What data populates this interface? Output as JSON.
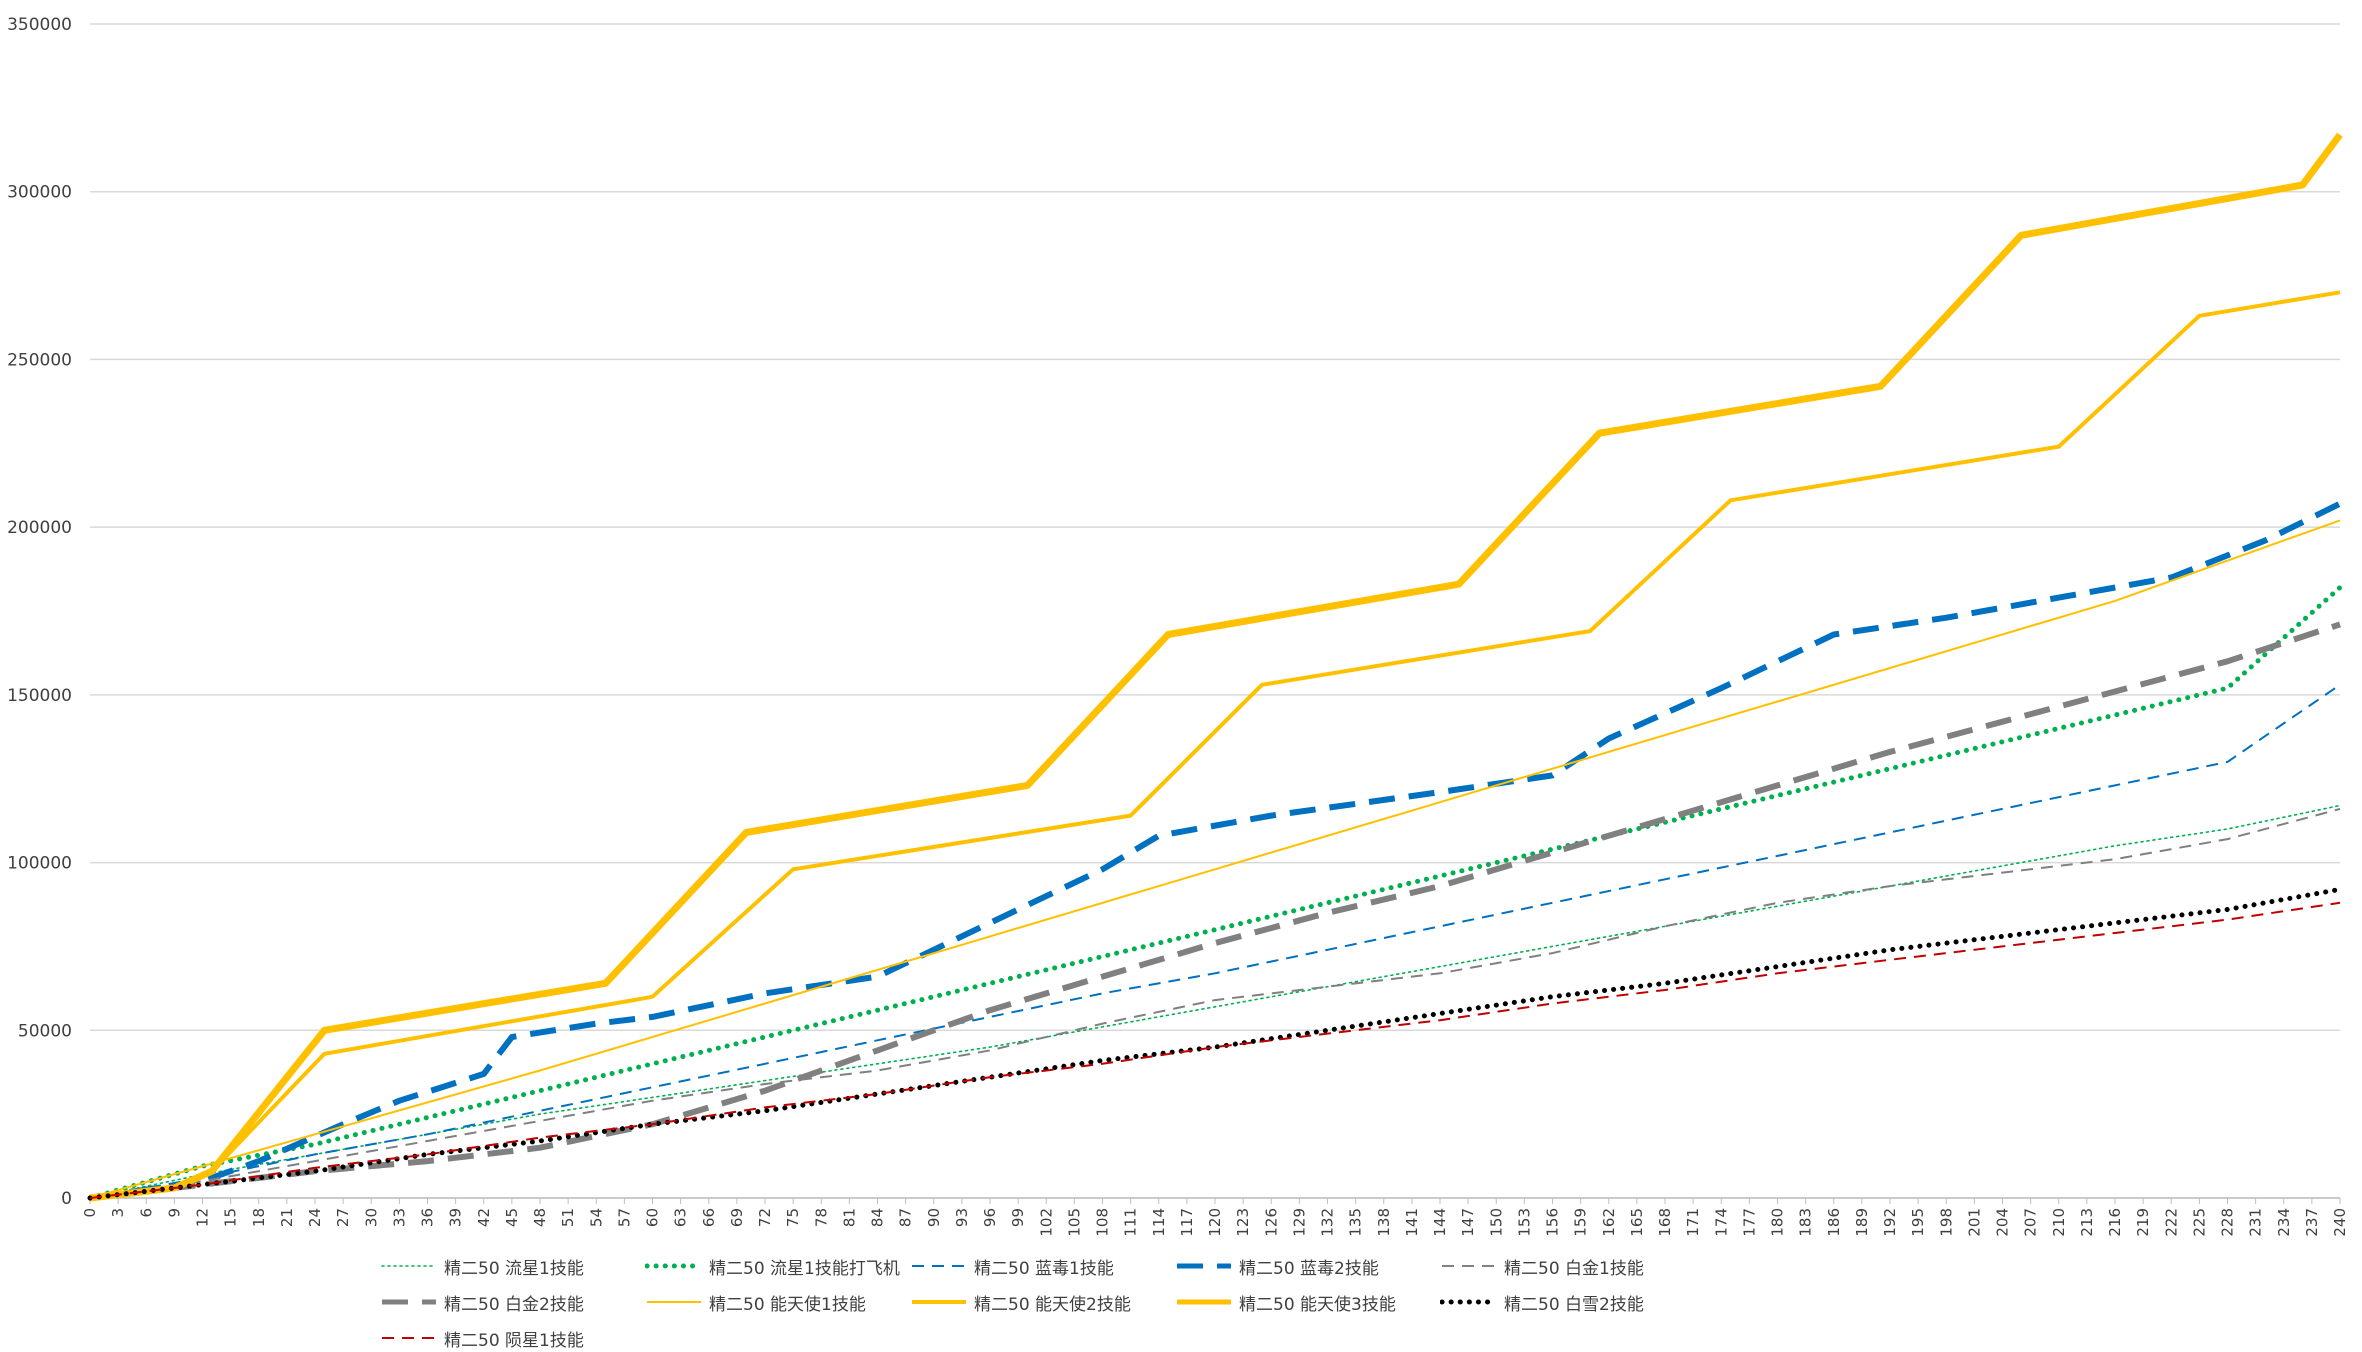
{
  "chart_data": {
    "type": "line",
    "title": "",
    "xlabel": "",
    "ylabel": "",
    "ylim": [
      0,
      350000
    ],
    "yticks": [
      0,
      50000,
      100000,
      150000,
      200000,
      250000,
      300000,
      350000
    ],
    "xlim": [
      0,
      240
    ],
    "xtick_step": 3,
    "xtick_last": 240,
    "grid": "horizontal",
    "legend_position": "bottom",
    "series": [
      {
        "name": "精二50 流星1技能",
        "color": "#00b050",
        "style": "dot-thin",
        "points": [
          [
            0,
            0
          ],
          [
            12,
            7000
          ],
          [
            24,
            13000
          ],
          [
            36,
            19000
          ],
          [
            48,
            25000
          ],
          [
            60,
            30000
          ],
          [
            72,
            35000
          ],
          [
            84,
            40000
          ],
          [
            96,
            45000
          ],
          [
            108,
            51000
          ],
          [
            120,
            57000
          ],
          [
            132,
            63000
          ],
          [
            144,
            69000
          ],
          [
            156,
            75000
          ],
          [
            168,
            81000
          ],
          [
            180,
            87000
          ],
          [
            192,
            93000
          ],
          [
            204,
            99000
          ],
          [
            216,
            105000
          ],
          [
            228,
            110000
          ],
          [
            240,
            117000
          ]
        ]
      },
      {
        "name": "精二50 流星1技能打飞机",
        "color": "#00b050",
        "style": "dot-thick",
        "points": [
          [
            0,
            0
          ],
          [
            12,
            9500
          ],
          [
            24,
            16000
          ],
          [
            36,
            24000
          ],
          [
            48,
            32000
          ],
          [
            60,
            40000
          ],
          [
            72,
            48000
          ],
          [
            84,
            56000
          ],
          [
            96,
            64000
          ],
          [
            108,
            72000
          ],
          [
            120,
            80000
          ],
          [
            132,
            88000
          ],
          [
            144,
            96000
          ],
          [
            156,
            104000
          ],
          [
            168,
            112000
          ],
          [
            180,
            120000
          ],
          [
            192,
            128000
          ],
          [
            204,
            136000
          ],
          [
            216,
            144000
          ],
          [
            228,
            152000
          ],
          [
            240,
            182000
          ]
        ]
      },
      {
        "name": "精二50 蓝毒1技能",
        "color": "#0070c0",
        "style": "dash-thin",
        "points": [
          [
            0,
            0
          ],
          [
            12,
            6000
          ],
          [
            24,
            13000
          ],
          [
            36,
            19000
          ],
          [
            48,
            26000
          ],
          [
            60,
            33000
          ],
          [
            72,
            40000
          ],
          [
            84,
            47000
          ],
          [
            96,
            54000
          ],
          [
            108,
            61000
          ],
          [
            120,
            67000
          ],
          [
            132,
            74000
          ],
          [
            144,
            81000
          ],
          [
            156,
            88000
          ],
          [
            168,
            95000
          ],
          [
            180,
            102000
          ],
          [
            192,
            109000
          ],
          [
            204,
            116000
          ],
          [
            216,
            123000
          ],
          [
            228,
            130000
          ],
          [
            240,
            153000
          ]
        ]
      },
      {
        "name": "精二50 蓝毒2技能",
        "color": "#0070c0",
        "style": "dash-thick",
        "points": [
          [
            0,
            0
          ],
          [
            12,
            5000
          ],
          [
            18,
            11000
          ],
          [
            27,
            22000
          ],
          [
            33,
            29000
          ],
          [
            42,
            37000
          ],
          [
            45,
            48000
          ],
          [
            54,
            52000
          ],
          [
            60,
            54000
          ],
          [
            72,
            61000
          ],
          [
            84,
            66000
          ],
          [
            99,
            86000
          ],
          [
            108,
            98000
          ],
          [
            114,
            108000
          ],
          [
            126,
            114000
          ],
          [
            144,
            121000
          ],
          [
            156,
            126000
          ],
          [
            162,
            137000
          ],
          [
            174,
            152000
          ],
          [
            186,
            168000
          ],
          [
            198,
            173000
          ],
          [
            210,
            179000
          ],
          [
            222,
            185000
          ],
          [
            232,
            196000
          ],
          [
            240,
            207000
          ]
        ]
      },
      {
        "name": "精二50 白金1技能",
        "color": "#808080",
        "style": "dash-thin",
        "points": [
          [
            0,
            0
          ],
          [
            12,
            5000
          ],
          [
            24,
            11000
          ],
          [
            36,
            17000
          ],
          [
            48,
            23000
          ],
          [
            60,
            29000
          ],
          [
            72,
            34000
          ],
          [
            84,
            38000
          ],
          [
            96,
            44000
          ],
          [
            108,
            52000
          ],
          [
            120,
            59000
          ],
          [
            132,
            63000
          ],
          [
            144,
            67000
          ],
          [
            156,
            73000
          ],
          [
            168,
            81000
          ],
          [
            180,
            88000
          ],
          [
            192,
            93000
          ],
          [
            204,
            97000
          ],
          [
            216,
            101000
          ],
          [
            228,
            107000
          ],
          [
            240,
            116000
          ]
        ]
      },
      {
        "name": "精二50 白金2技能",
        "color": "#808080",
        "style": "dash-thick",
        "points": [
          [
            0,
            0
          ],
          [
            12,
            4000
          ],
          [
            24,
            8000
          ],
          [
            36,
            11000
          ],
          [
            48,
            15000
          ],
          [
            60,
            22000
          ],
          [
            72,
            32000
          ],
          [
            84,
            44000
          ],
          [
            96,
            56000
          ],
          [
            108,
            66000
          ],
          [
            120,
            76000
          ],
          [
            132,
            85000
          ],
          [
            144,
            93000
          ],
          [
            156,
            103000
          ],
          [
            168,
            113000
          ],
          [
            180,
            123000
          ],
          [
            192,
            133000
          ],
          [
            204,
            142000
          ],
          [
            216,
            151000
          ],
          [
            228,
            160000
          ],
          [
            240,
            171000
          ]
        ]
      },
      {
        "name": "精二50 能天使1技能",
        "color": "#ffc000",
        "style": "solid-thin",
        "points": [
          [
            0,
            0
          ],
          [
            24,
            19000
          ],
          [
            48,
            38000
          ],
          [
            72,
            58000
          ],
          [
            96,
            78000
          ],
          [
            120,
            98000
          ],
          [
            144,
            118000
          ],
          [
            168,
            138000
          ],
          [
            192,
            158000
          ],
          [
            216,
            178000
          ],
          [
            240,
            202000
          ]
        ]
      },
      {
        "name": "精二50 能天使2技能",
        "color": "#ffc000",
        "style": "solid-mid",
        "points": [
          [
            0,
            0
          ],
          [
            9,
            3000
          ],
          [
            13,
            8000
          ],
          [
            25,
            43000
          ],
          [
            58,
            59000
          ],
          [
            60,
            60000
          ],
          [
            75,
            98000
          ],
          [
            111,
            114000
          ],
          [
            125,
            153000
          ],
          [
            160,
            169000
          ],
          [
            175,
            208000
          ],
          [
            210,
            224000
          ],
          [
            225,
            263000
          ],
          [
            240,
            270000
          ]
        ]
      },
      {
        "name": "精二50 能天使3技能",
        "color": "#ffc000",
        "style": "solid-thick",
        "points": [
          [
            0,
            0
          ],
          [
            9,
            3000
          ],
          [
            13,
            8000
          ],
          [
            25,
            50000
          ],
          [
            55,
            64000
          ],
          [
            70,
            109000
          ],
          [
            100,
            123000
          ],
          [
            115,
            168000
          ],
          [
            146,
            183000
          ],
          [
            161,
            228000
          ],
          [
            191,
            242000
          ],
          [
            206,
            287000
          ],
          [
            236,
            302000
          ],
          [
            240,
            317000
          ]
        ]
      },
      {
        "name": "精二50 白雪2技能",
        "color": "#000000",
        "style": "dot-thick",
        "points": [
          [
            0,
            0
          ],
          [
            12,
            4000
          ],
          [
            24,
            8000
          ],
          [
            36,
            13000
          ],
          [
            48,
            17000
          ],
          [
            60,
            22000
          ],
          [
            72,
            26000
          ],
          [
            84,
            31000
          ],
          [
            96,
            36000
          ],
          [
            108,
            41000
          ],
          [
            120,
            45000
          ],
          [
            132,
            50000
          ],
          [
            144,
            55000
          ],
          [
            156,
            60000
          ],
          [
            168,
            64000
          ],
          [
            180,
            69000
          ],
          [
            192,
            74000
          ],
          [
            204,
            78000
          ],
          [
            216,
            82000
          ],
          [
            228,
            86000
          ],
          [
            240,
            92000
          ]
        ]
      },
      {
        "name": "精二50 陨星1技能",
        "color": "#c00000",
        "style": "dash-thin",
        "points": [
          [
            0,
            0
          ],
          [
            12,
            4000
          ],
          [
            24,
            9000
          ],
          [
            36,
            13000
          ],
          [
            48,
            18000
          ],
          [
            60,
            22000
          ],
          [
            72,
            27000
          ],
          [
            84,
            31000
          ],
          [
            96,
            36000
          ],
          [
            108,
            40000
          ],
          [
            120,
            45000
          ],
          [
            132,
            49000
          ],
          [
            144,
            53000
          ],
          [
            156,
            58000
          ],
          [
            168,
            62000
          ],
          [
            180,
            67000
          ],
          [
            192,
            71000
          ],
          [
            204,
            75000
          ],
          [
            216,
            79000
          ],
          [
            228,
            83000
          ],
          [
            240,
            88000
          ]
        ]
      }
    ]
  }
}
